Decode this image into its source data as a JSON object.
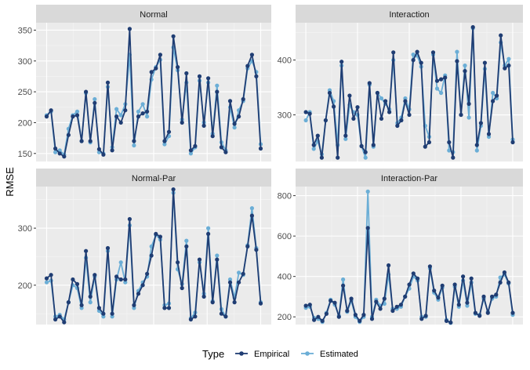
{
  "chart_data": {
    "type": "line",
    "ylabel": "RMSE",
    "legend": {
      "title": "Type",
      "placement": "bottom",
      "entries": [
        "Empirical",
        "Estimated"
      ]
    },
    "colors": {
      "Empirical": "#1f3d73",
      "Estimated": "#6baed6"
    },
    "panels": [
      {
        "title": "Normal",
        "ylim": [
          137,
          362
        ],
        "yticks": [
          150,
          200,
          250,
          300,
          350
        ],
        "series": [
          {
            "name": "Empirical",
            "values": [
              210,
              220,
              158,
              150,
              145,
              180,
              210,
              212,
              170,
              250,
              170,
              232,
              157,
              148,
              265,
              155,
              210,
              200,
              220,
              352,
              170,
              210,
              215,
              218,
              282,
              288,
              310,
              170,
              185,
              340,
              290,
              200,
              280,
              155,
              162,
              275,
              195,
              272,
              178,
              250,
              160,
              152,
              235,
              198,
              210,
              238,
              292,
              310,
              275,
              158
            ]
          },
          {
            "name": "Estimated",
            "values": [
              212,
              218,
              152,
              155,
              148,
              190,
              212,
              218,
              170,
              248,
              168,
              238,
              152,
              150,
              258,
              160,
              222,
              212,
              230,
              310,
              163,
              218,
              230,
              210,
              270,
              290,
              302,
              165,
              178,
              322,
              285,
              205,
              265,
              150,
              160,
              268,
              200,
              265,
              182,
              260,
              168,
              155,
              225,
              192,
              220,
              235,
              288,
              300,
              282,
              165
            ]
          }
        ]
      },
      {
        "title": "Interaction",
        "ylim": [
          215,
          468
        ],
        "yticks": [
          300,
          400
        ],
        "series": [
          {
            "name": "Empirical",
            "values": [
              305,
              302,
              245,
              262,
              222,
              290,
              340,
              315,
              222,
              397,
              262,
              335,
              293,
              314,
              243,
              232,
              358,
              245,
              340,
              293,
              325,
              305,
              414,
              280,
              290,
              325,
              300,
              400,
              415,
              395,
              242,
              250,
              414,
              362,
              365,
              368,
              250,
              222,
              398,
              300,
              380,
              320,
              460,
              245,
              285,
              395,
              265,
              325,
              335,
              445,
              385,
              390,
              250
            ]
          },
          {
            "name": "Estimated",
            "values": [
              290,
              305,
              238,
              252,
              228,
              290,
              345,
              325,
              245,
              390,
              256,
              318,
              305,
              300,
              243,
              222,
              355,
              242,
              340,
              330,
              320,
              310,
              400,
              285,
              295,
              330,
              310,
              410,
              408,
              388,
              280,
              260,
              410,
              348,
              340,
              372,
              235,
              232,
              415,
              300,
              390,
              295,
              458,
              235,
              280,
              384,
              260,
              340,
              330,
              432,
              390,
              402,
              255
            ]
          }
        ]
      },
      {
        "title": "Normal-Par",
        "ylim": [
          131,
          373
        ],
        "yticks": [
          200,
          300
        ],
        "series": [
          {
            "name": "Empirical",
            "values": [
              212,
              218,
              140,
              145,
              135,
              170,
              210,
              202,
              165,
              260,
              180,
              218,
              160,
              150,
              265,
              150,
              215,
              210,
              210,
              316,
              165,
              185,
              200,
              220,
              252,
              290,
              285,
              160,
              160,
              368,
              240,
              195,
              268,
              140,
              145,
              245,
              180,
              290,
              170,
              245,
              150,
              145,
              205,
              170,
              205,
              220,
              268,
              322,
              262,
              168
            ]
          },
          {
            "name": "Estimated",
            "values": [
              205,
              208,
              145,
              148,
              140,
              170,
              200,
              195,
              160,
              248,
              170,
              215,
              155,
              145,
              260,
              145,
              210,
              240,
              205,
              305,
              160,
              190,
              205,
              215,
              268,
              288,
              280,
              165,
              168,
              362,
              228,
              202,
              278,
              142,
              152,
              240,
              185,
              300,
              172,
              252,
              158,
              145,
              210,
              178,
              222,
              218,
              270,
              335,
              265,
              170
            ]
          }
        ]
      },
      {
        "title": "Interaction-Par",
        "ylim": [
          162,
          845
        ],
        "yticks": [
          200,
          400,
          600,
          800
        ],
        "series": [
          {
            "name": "Empirical",
            "values": [
              255,
              260,
              185,
              200,
              180,
              215,
              280,
              270,
              200,
              355,
              230,
              290,
              210,
              180,
              210,
              640,
              190,
              275,
              240,
              290,
              455,
              230,
              250,
              260,
              300,
              360,
              415,
              390,
              190,
              205,
              450,
              330,
              295,
              355,
              180,
              172,
              360,
              260,
              400,
              270,
              390,
              220,
              205,
              300,
              220,
              300,
              310,
              370,
              420,
              370,
              220
            ]
          },
          {
            "name": "Estimated",
            "values": [
              245,
              250,
              195,
              190,
              175,
              220,
              285,
              260,
              205,
              385,
              225,
              280,
              200,
              175,
              200,
              820,
              200,
              285,
              255,
              265,
              410,
              240,
              240,
              250,
              300,
              340,
              400,
              380,
              200,
              200,
              440,
              320,
              285,
              345,
              185,
              170,
              350,
              250,
              380,
              255,
              370,
              215,
              210,
              290,
              225,
              290,
              300,
              395,
              410,
              365,
              210
            ]
          }
        ]
      }
    ]
  }
}
